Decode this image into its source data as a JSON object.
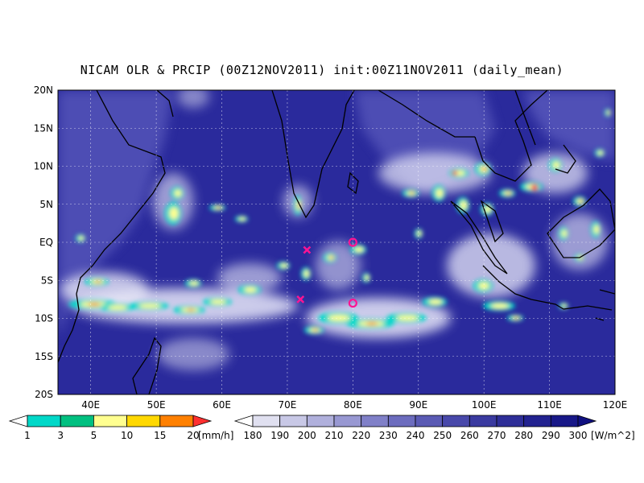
{
  "title": "NICAM OLR & PRCIP (00Z12NOV2011) init:00Z11NOV2011 (daily_mean)",
  "map": {
    "lon_range": [
      35,
      120
    ],
    "lat_range": [
      -20,
      20
    ],
    "lon_ticks": [
      "40E",
      "50E",
      "60E",
      "70E",
      "80E",
      "90E",
      "100E",
      "110E",
      "120E"
    ],
    "lat_ticks": [
      "20N",
      "15N",
      "10N",
      "5N",
      "EQ",
      "5S",
      "10S",
      "15S",
      "20S"
    ],
    "ocean_color": "#2a2a9c",
    "markers": [
      {
        "type": "circle",
        "lon": 80,
        "lat": 0,
        "color": "#ff1493"
      },
      {
        "type": "circle",
        "lon": 80,
        "lat": -8,
        "color": "#ff1493"
      },
      {
        "type": "cross",
        "lon": 73,
        "lat": -1,
        "color": "#ff1493"
      },
      {
        "type": "cross",
        "lon": 72,
        "lat": -7.5,
        "color": "#ff1493"
      }
    ]
  },
  "precip_legend": {
    "labels": [
      "1",
      "3",
      "5",
      "10",
      "15",
      "20"
    ],
    "unit": "[mm/h]",
    "colors": [
      "#ffffff",
      "#00d8c8",
      "#00c080",
      "#ffff90",
      "#ffd800",
      "#ff8000",
      "#ff3030"
    ]
  },
  "olr_legend": {
    "labels": [
      "180",
      "190",
      "200",
      "210",
      "220",
      "230",
      "240",
      "250",
      "260",
      "270",
      "280",
      "290",
      "300"
    ],
    "unit": "[W/m^2]",
    "colors": [
      "#ffffff",
      "#e0e0f0",
      "#c8c8e6",
      "#b0b0dc",
      "#9898d2",
      "#8080c8",
      "#6c6cbe",
      "#5a5ab4",
      "#4848aa",
      "#3a3aa0",
      "#2e2e98",
      "#222290",
      "#181888",
      "#101080"
    ]
  }
}
